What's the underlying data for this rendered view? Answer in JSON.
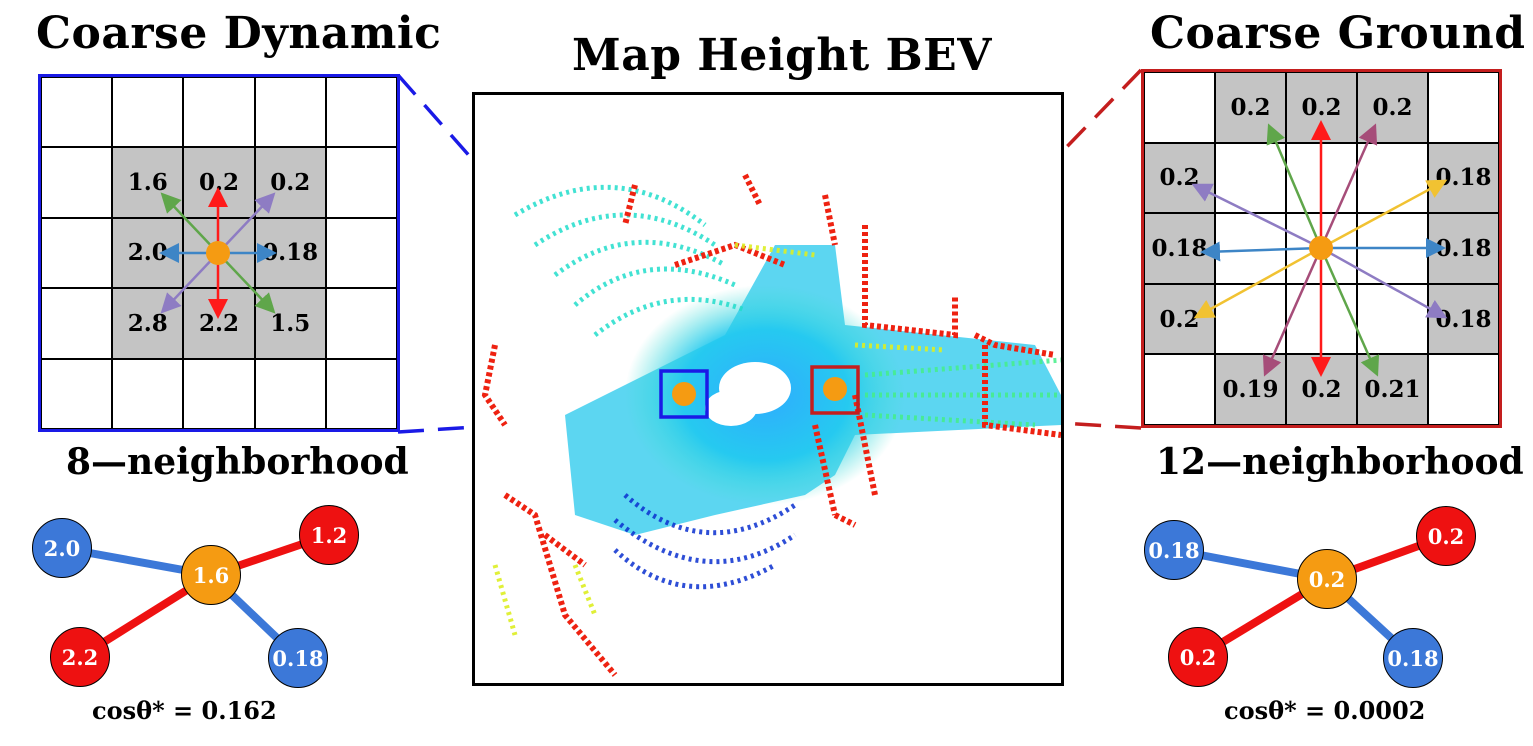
{
  "left_panel": {
    "title": "Coarse Dynamic",
    "subtitle": "8—neighborhood",
    "frame_color": "#1a1ae6",
    "rows": [
      [
        "",
        "",
        "",
        "",
        ""
      ],
      [
        "",
        "1.6",
        "0.2",
        "0.2",
        ""
      ],
      [
        "",
        "2.0",
        "",
        "0.18",
        ""
      ],
      [
        "",
        "2.8",
        "2.2",
        "1.5",
        ""
      ],
      [
        "",
        "",
        "",
        "",
        ""
      ]
    ],
    "graph": {
      "center": "1.6",
      "nodes": [
        "2.0",
        "1.2",
        "2.2",
        "0.18"
      ],
      "formula_label": "cosθ* = ",
      "formula_value": "0.162"
    }
  },
  "center_panel": {
    "title": "Map Height BEV",
    "markers": [
      {
        "label": "blue-box",
        "color": "#1a1ae6"
      },
      {
        "label": "red-box",
        "color": "#c41e1e"
      }
    ]
  },
  "right_panel": {
    "title": "Coarse Ground",
    "subtitle": "12—neighborhood",
    "frame_color": "#c41e1e",
    "rows": [
      [
        "",
        "0.2",
        "0.2",
        "0.2",
        ""
      ],
      [
        "0.2",
        "",
        "",
        "",
        "0.18"
      ],
      [
        "0.18",
        "",
        "",
        "",
        "0.18"
      ],
      [
        "0.2",
        "",
        "",
        "",
        "0.18"
      ],
      [
        "",
        "0.19",
        "0.2",
        "0.21",
        ""
      ]
    ],
    "graph": {
      "center": "0.2",
      "nodes": [
        "0.18",
        "0.2",
        "0.2",
        "0.18"
      ],
      "formula_label": "cosθ* = ",
      "formula_value": "0.0002"
    }
  },
  "colors": {
    "center_dot": "#f59b12",
    "node_blue": "#3c78d8",
    "node_red": "#ee1111",
    "node_orange": "#f59b12",
    "arrow_red": "#ff1a1a",
    "arrow_green": "#5fa64a",
    "arrow_purple": "#8e7cc3",
    "arrow_blue": "#3d85c6",
    "arrow_magenta": "#a64d79",
    "arrow_yellow": "#f1c232"
  }
}
